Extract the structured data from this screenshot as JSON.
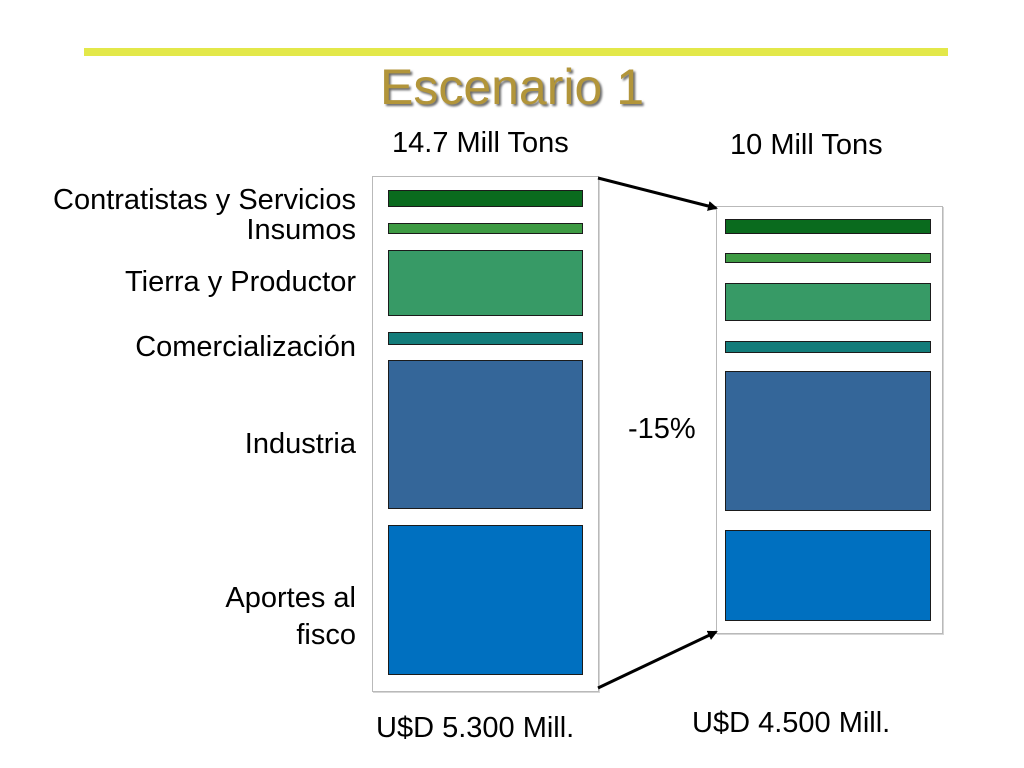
{
  "title": "Escenario 1",
  "categories": [
    "Contratistas y Servicios",
    "Insumos",
    "Tierra y Productor",
    "Comercialización",
    "Industria",
    "Aportes al fisco"
  ],
  "colors": {
    "contratistas": "#0a6b1e",
    "insumos": "#3d9a43",
    "tierra": "#379a66",
    "comercializacion": "#137c7a",
    "industria": "#346699",
    "aportes": "#0070c0",
    "title": "#b2953a",
    "rule": "#e3e84a"
  },
  "scenarios": [
    {
      "tonnage": "14.7 Mill Tons",
      "value": "U$D 5.300 Mill."
    },
    {
      "tonnage": "10 Mill Tons",
      "value": "U$D 4.500 Mill."
    }
  ],
  "change": "-15%"
}
